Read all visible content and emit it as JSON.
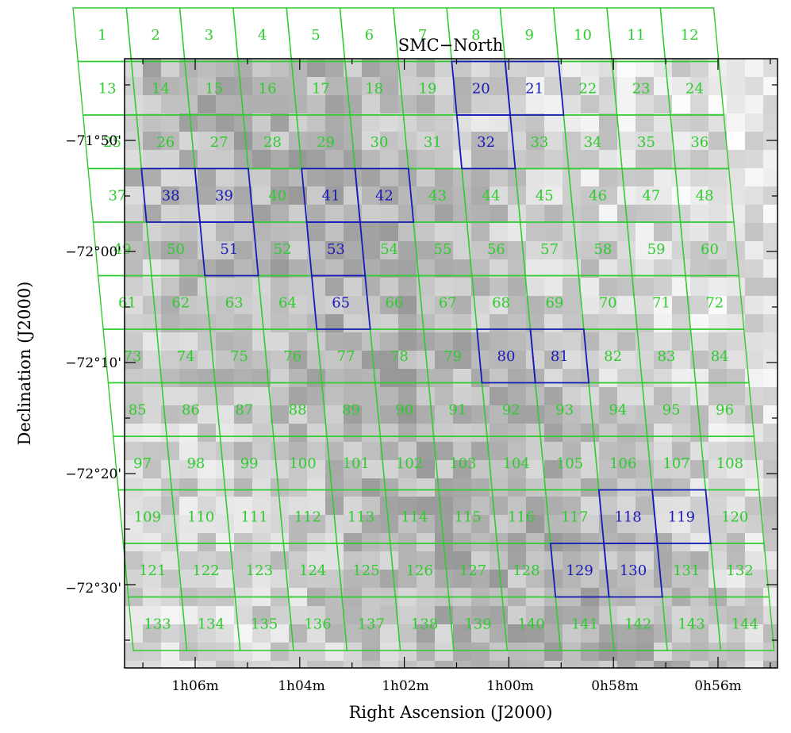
{
  "colors": {
    "field_default": "#2ecc2e",
    "field_highlight": "#1a1ab8",
    "frame": "#000000"
  },
  "chart_data": {
    "type": "scatter",
    "title": "SMC−North",
    "xlabel": "Right Ascension (J2000)",
    "ylabel": "Declination (J2000)",
    "x_ticks": [
      "1h06m",
      "1h04m",
      "1h02m",
      "1h00m",
      "0h58m",
      "0h56m"
    ],
    "y_ticks": [
      "−71°50'",
      "−72°00'",
      "−72°10'",
      "−72°20'",
      "−72°30'"
    ],
    "grid": false,
    "background": "grayscale intensity image of the SMC north region",
    "series": [
      {
        "values": [
          1,
          2,
          3,
          4,
          5,
          6,
          7,
          8,
          9,
          10,
          11,
          12,
          13,
          14,
          15,
          16,
          17,
          18,
          19,
          22,
          23,
          24,
          25,
          26,
          27,
          28,
          29,
          30,
          31,
          33,
          34,
          35,
          36,
          37,
          40,
          43,
          44,
          45,
          46,
          47,
          48,
          49,
          50,
          52,
          54,
          55,
          56,
          57,
          58,
          59,
          60,
          61,
          62,
          63,
          64,
          66,
          67,
          68,
          69,
          70,
          71,
          72,
          73,
          74,
          75,
          76,
          77,
          78,
          79,
          82,
          83,
          84,
          85,
          86,
          87,
          88,
          89,
          90,
          91,
          92,
          93,
          94,
          95,
          96,
          97,
          98,
          99,
          100,
          101,
          102,
          103,
          104,
          105,
          106,
          107,
          108,
          109,
          110,
          111,
          112,
          113,
          114,
          115,
          116,
          117,
          120,
          121,
          122,
          123,
          124,
          125,
          126,
          127,
          128,
          131,
          132,
          133,
          134,
          135,
          136,
          137,
          138,
          139,
          140,
          141,
          142,
          143,
          144
        ]
      },
      {
        "values": [
          20,
          21,
          32,
          38,
          39,
          41,
          42,
          51,
          53,
          65,
          80,
          81,
          118,
          119,
          129,
          130
        ]
      }
    ]
  }
}
